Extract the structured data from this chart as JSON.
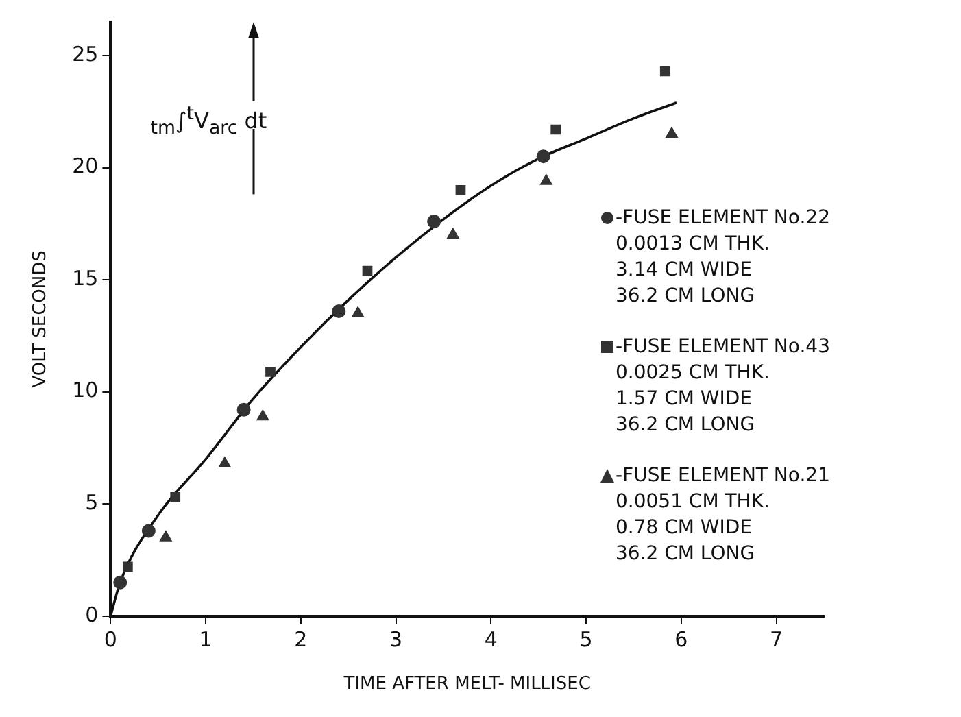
{
  "chart_data": {
    "type": "scatter",
    "xlabel": "TIME AFTER MELT- MILLISEC",
    "ylabel": "VOLT SECONDS",
    "xlim": [
      0,
      7.5
    ],
    "xticks": [
      0,
      1,
      2,
      3,
      4,
      5,
      6,
      7
    ],
    "ylim": [
      0,
      26.5
    ],
    "yticks": [
      0,
      5,
      10,
      15,
      20,
      25
    ],
    "grid": false,
    "legend": "right",
    "annotations": [
      "$_{tm}$∫$^{t}$V$_{arc}$ dt"
    ],
    "series": [
      {
        "name": "-FUSE ELEMENT No.22\n0.0013 CM THK.\n3.14 CM WIDE\n36.2 CM LONG",
        "color": "#333333",
        "marker": "circle",
        "x": [
          0.1,
          0.4,
          1.4,
          2.4,
          3.4,
          4.55
        ],
        "values": [
          1.5,
          3.8,
          9.2,
          13.6,
          17.6,
          20.5
        ]
      },
      {
        "name": "-FUSE ELEMENT No.43\n0.0025 CM THK.\n1.57 CM WIDE\n36.2 CM LONG",
        "color": "#333333",
        "marker": "square",
        "x": [
          0.18,
          0.68,
          1.68,
          2.7,
          3.68,
          4.68,
          5.83
        ],
        "values": [
          2.2,
          5.3,
          10.9,
          15.4,
          19,
          21.7,
          24.3
        ]
      },
      {
        "name": "-FUSE ELEMENT No.21\n0.0051 CM THK.\n0.78 CM WIDE\n36.2 CM LONG",
        "color": "#333333",
        "marker": "triangle",
        "x": [
          0.58,
          1.2,
          1.6,
          2.6,
          3.6,
          4.58,
          5.9
        ],
        "values": [
          3.5,
          6.8,
          8.9,
          13.5,
          17,
          19.4,
          21.5
        ]
      },
      {
        "type": "line",
        "color": "#111111",
        "marker": "none",
        "line_style": "solid",
        "x": [
          0,
          0.1,
          0.5,
          1,
          1.5,
          2,
          2.5,
          3,
          3.5,
          4,
          4.5,
          5,
          5.5,
          5.95
        ],
        "values": [
          0,
          1.5,
          4.5,
          7,
          9.7,
          12,
          14.1,
          16,
          17.7,
          19.2,
          20.4,
          21.3,
          22.2,
          22.9
        ]
      }
    ]
  }
}
